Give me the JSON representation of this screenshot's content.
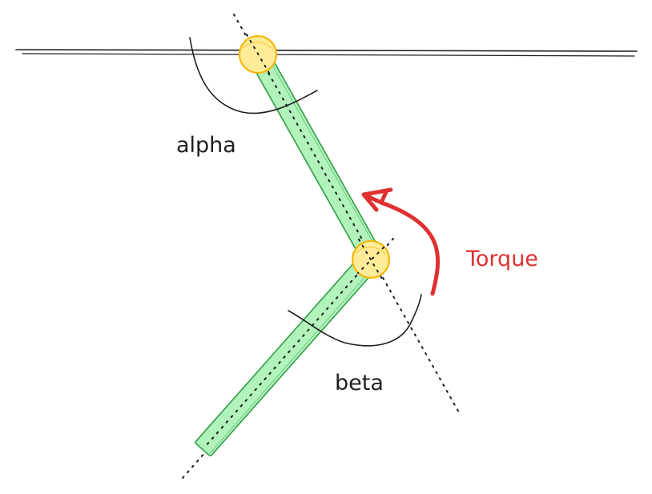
{
  "labels": {
    "alpha": "alpha",
    "beta": "beta",
    "torque": "Torque"
  },
  "colors": {
    "link_fill": "#b2f2bb",
    "link_stroke": "#2f9e44",
    "joint_fill": "#ffec99",
    "joint_stroke": "#f5b400",
    "line": "#1e1e1e",
    "torque": "#e03131"
  }
}
